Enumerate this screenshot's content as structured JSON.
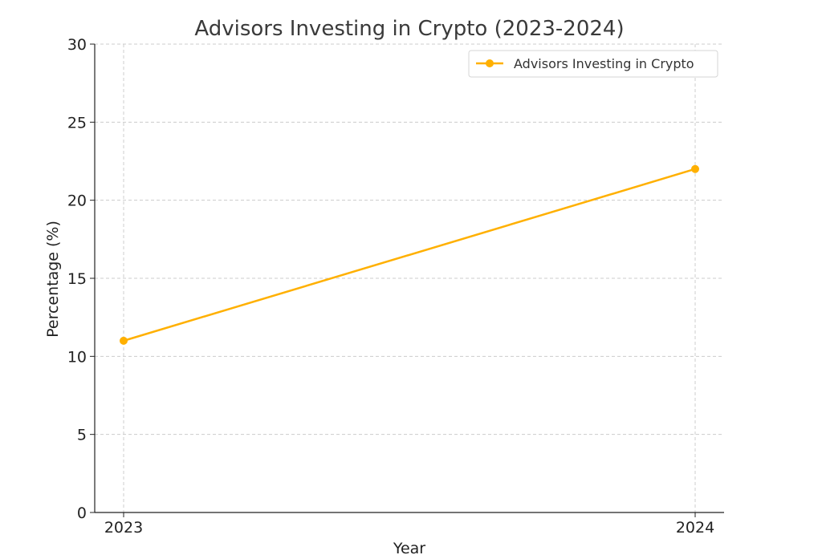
{
  "chart_data": {
    "type": "line",
    "title": "Advisors Investing in Crypto (2023-2024)",
    "xlabel": "Year",
    "ylabel": "Percentage (%)",
    "x": [
      "2023",
      "2024"
    ],
    "series": [
      {
        "name": "Advisors Investing in Crypto",
        "values": [
          11,
          22
        ],
        "color": "#FFB000"
      }
    ],
    "ylim": [
      0,
      30
    ],
    "yticks": [
      "0",
      "5",
      "10",
      "15",
      "20",
      "25",
      "30"
    ],
    "xticks": [
      "2023",
      "2024"
    ],
    "grid": true,
    "legend_position": "top-right"
  }
}
